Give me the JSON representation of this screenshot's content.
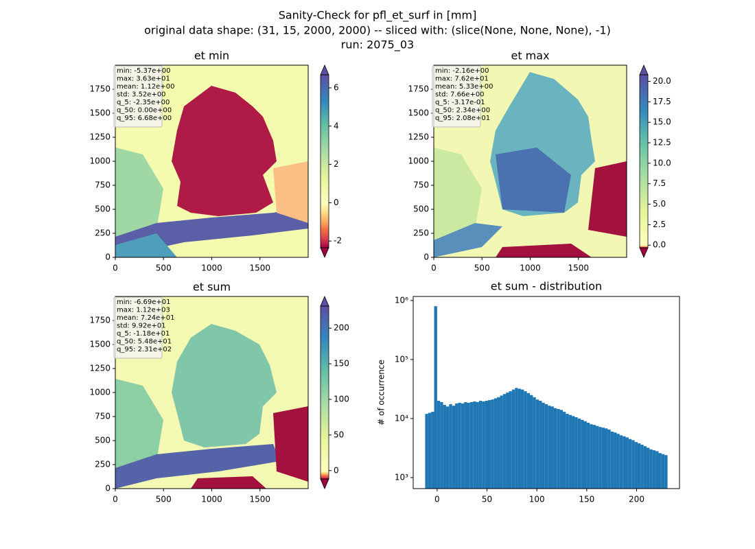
{
  "suptitle": [
    "Sanity-Check for pfl_et_surf in [mm]",
    "original data shape: (31, 15, 2000, 2000) -- sliced with: (slice(None, None, None), -1)",
    "run: 2075_03"
  ],
  "chart_data": [
    {
      "type": "heatmap",
      "title": "et min",
      "xlim": [
        0,
        2000
      ],
      "ylim": [
        0,
        2000
      ],
      "xticks": [
        0,
        500,
        1000,
        1500
      ],
      "yticks": [
        0,
        250,
        500,
        750,
        1000,
        1250,
        1500,
        1750
      ],
      "stats": [
        "min: -5.37e+00",
        "max: 3.63e+01",
        "mean: 1.12e+00",
        "std: 3.52e+00",
        "q_5: -2.35e+00",
        "q_50: 0.00e+00",
        "q_95: 6.68e+00"
      ],
      "colorbar": {
        "cmap": "Spectral",
        "vcenter": 0,
        "extend": "both",
        "lim": [
          -2.35,
          6.68
        ],
        "ticks": [
          -2,
          0,
          2,
          4,
          6
        ]
      }
    },
    {
      "type": "heatmap",
      "title": "et max",
      "xlim": [
        0,
        2000
      ],
      "ylim": [
        0,
        2000
      ],
      "xticks": [
        0,
        500,
        1000,
        1500
      ],
      "yticks": [
        0,
        250,
        500,
        750,
        1000,
        1250,
        1500,
        1750
      ],
      "stats": [
        "min: -2.16e+00",
        "max: 7.62e+01",
        "mean: 5.33e+00",
        "std: 7.66e+00",
        "q_5: -3.17e-01",
        "q_50: 2.34e+00",
        "q_95: 2.08e+01"
      ],
      "colorbar": {
        "cmap": "Spectral",
        "vcenter": 0,
        "extend": "both",
        "lim": [
          -0.317,
          20.8
        ],
        "ticks": [
          {
            "value": 0,
            "label": "0.0"
          },
          {
            "value": 2.5,
            "label": "2.5"
          },
          {
            "value": 5,
            "label": "5.0"
          },
          {
            "value": 7.5,
            "label": "7.5"
          },
          {
            "value": 10,
            "label": "10.0"
          },
          {
            "value": 12.5,
            "label": "12.5"
          },
          {
            "value": 15,
            "label": "15.0"
          },
          {
            "value": 17.5,
            "label": "17.5"
          },
          {
            "value": 20,
            "label": "20.0"
          }
        ]
      }
    },
    {
      "type": "heatmap",
      "title": "et sum",
      "xlim": [
        0,
        2000
      ],
      "ylim": [
        0,
        2000
      ],
      "xticks": [
        0,
        500,
        1000,
        1500
      ],
      "yticks": [
        0,
        250,
        500,
        750,
        1000,
        1250,
        1500,
        1750
      ],
      "stats": [
        "min: -6.69e+01",
        "max: 1.12e+03",
        "mean: 7.24e+01",
        "std: 9.92e+01",
        "q_5: -1.18e+01",
        "q_50: 5.48e+01",
        "q_95: 2.31e+02"
      ],
      "colorbar": {
        "cmap": "Spectral",
        "vcenter": 0,
        "extend": "both",
        "lim": [
          -11.8,
          231
        ],
        "ticks": [
          0,
          50,
          100,
          150,
          200
        ]
      }
    },
    {
      "type": "histogram",
      "title": "et sum - distribution",
      "y_label": "# of occurrence",
      "color": "#1f77b4",
      "yscale": "log",
      "xlim": [
        -24,
        243
      ],
      "ylim": [
        650,
        1170000
      ],
      "xticks": [
        0,
        50,
        100,
        150,
        200
      ],
      "yticks": [
        {
          "value": 1000,
          "label": "10³"
        },
        {
          "value": 10000,
          "label": "10⁴"
        },
        {
          "value": 100000,
          "label": "10⁵"
        },
        {
          "value": 1000000,
          "label": "10⁶"
        }
      ],
      "bins": [
        -12,
        -9,
        -6,
        -3,
        0,
        3,
        6,
        9,
        12,
        15,
        18,
        21,
        24,
        27,
        30,
        33,
        36,
        39,
        42,
        45,
        48,
        51,
        54,
        57,
        60,
        63,
        66,
        69,
        72,
        75,
        78,
        81,
        84,
        87,
        90,
        93,
        96,
        99,
        102,
        105,
        108,
        111,
        114,
        117,
        120,
        123,
        126,
        129,
        132,
        135,
        138,
        141,
        144,
        147,
        150,
        153,
        156,
        159,
        162,
        165,
        168,
        171,
        174,
        177,
        180,
        183,
        186,
        189,
        192,
        195,
        198,
        201,
        204,
        207,
        210,
        213,
        216,
        219,
        222,
        225,
        228,
        231
      ],
      "values": [
        12000,
        12500,
        13000,
        800000,
        20000,
        19000,
        17000,
        16000,
        17500,
        16500,
        18000,
        18500,
        18000,
        19000,
        18500,
        19000,
        19500,
        19000,
        20000,
        19500,
        20000,
        20500,
        21000,
        22000,
        23000,
        24500,
        26000,
        27500,
        29000,
        31000,
        33000,
        32000,
        31000,
        29000,
        27000,
        25000,
        23000,
        21000,
        20000,
        18500,
        17500,
        16500,
        16000,
        15000,
        14500,
        14000,
        13000,
        12000,
        11500,
        11000,
        10500,
        10000,
        9500,
        9000,
        8500,
        8000,
        7800,
        7500,
        7200,
        7000,
        6800,
        6500,
        6000,
        5800,
        5500,
        5200,
        5000,
        4800,
        4500,
        4300,
        4000,
        3800,
        3600,
        3400,
        3200,
        3000,
        2900,
        2800,
        2600,
        2500,
        2400
      ]
    }
  ]
}
